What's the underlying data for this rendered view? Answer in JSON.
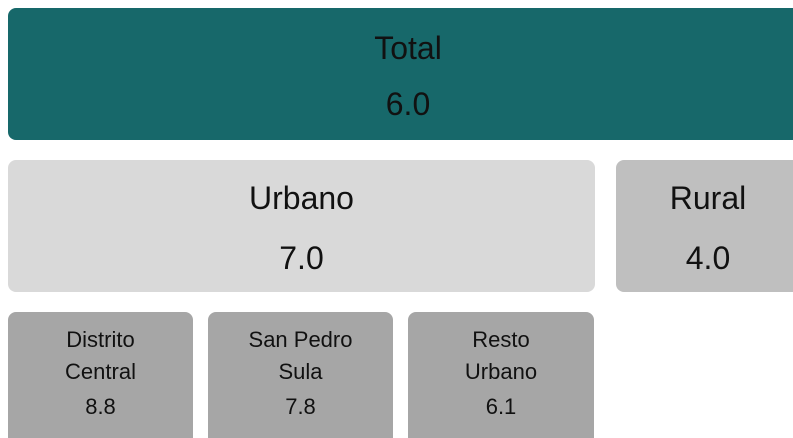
{
  "nodes": [
    {
      "label": "Total",
      "value": "6.0"
    },
    {
      "label": "Urbano",
      "value": "7.0"
    },
    {
      "label": "Rural",
      "value": "4.0"
    },
    {
      "label": "Distrito Central",
      "value": "8.8"
    },
    {
      "label": "San Pedro Sula",
      "value": "7.8"
    },
    {
      "label": "Resto Urbano",
      "value": "6.1"
    }
  ]
}
